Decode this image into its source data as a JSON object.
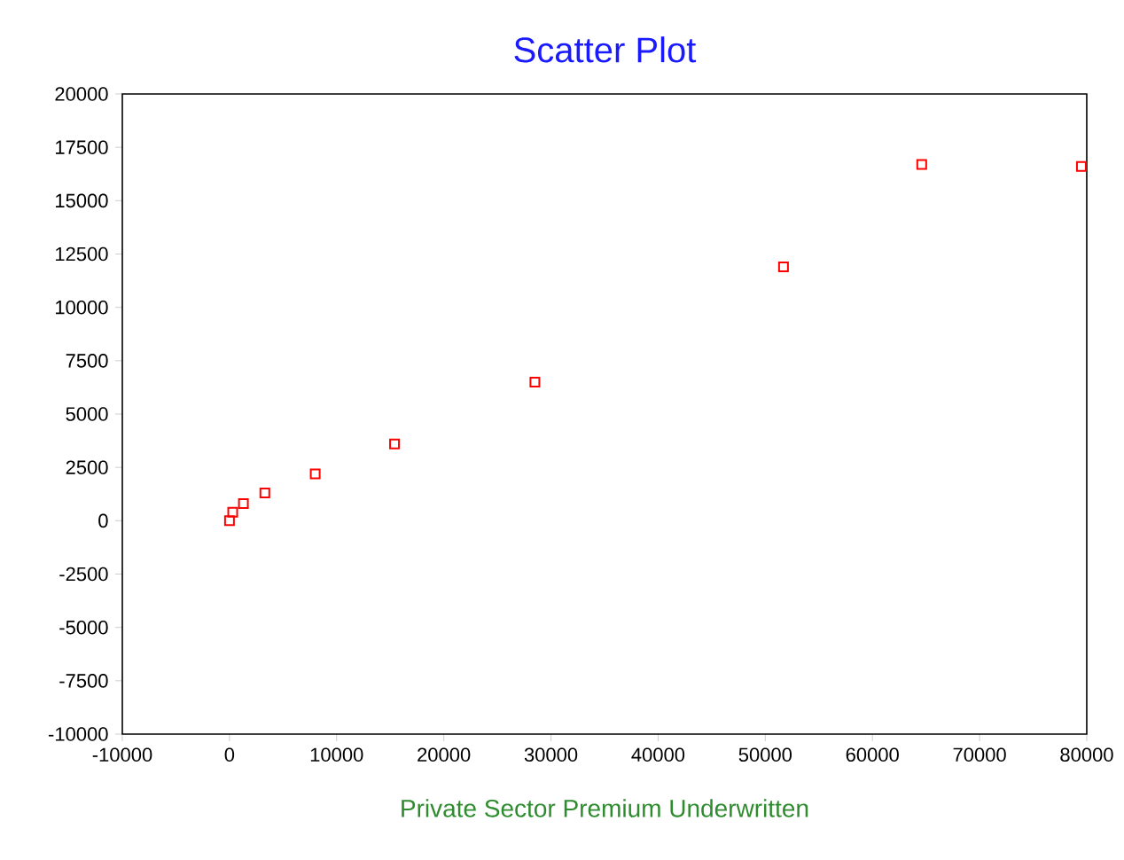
{
  "chart_data": {
    "type": "scatter",
    "title": "Scatter Plot",
    "xlabel": "Private Sector Premium Underwritten",
    "x": [
      0,
      300,
      1300,
      3300,
      8000,
      15400,
      28500,
      51700,
      64600,
      79500
    ],
    "series": [
      {
        "color": "#ff0000",
        "values": [
          0,
          400,
          800,
          1300,
          2200,
          3600,
          6500,
          11900,
          16700,
          16600
        ]
      }
    ],
    "marker": "square",
    "grid": false,
    "xlim": [
      -10000,
      80000
    ],
    "xticks": [
      -10000,
      0,
      10000,
      20000,
      30000,
      40000,
      50000,
      60000,
      70000,
      80000
    ],
    "ylim": [
      -10000,
      20000
    ],
    "yticks": [
      -10000,
      -7500,
      -5000,
      -2500,
      0,
      2500,
      5000,
      7500,
      10000,
      12500,
      15000,
      17500,
      20000
    ]
  }
}
